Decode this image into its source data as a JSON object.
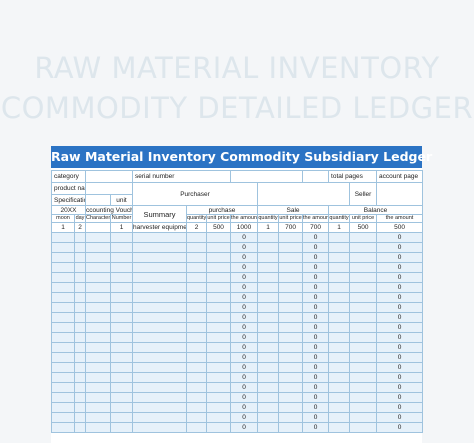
{
  "hero": {
    "line1": "RAW MATERIAL INVENTORY",
    "line2": "COMMODITY DETAILED LEDGER"
  },
  "sheet": {
    "title": "Raw Material Inventory Commodity Subsidiary Ledger",
    "labels": {
      "category": "category",
      "serial_number": "serial number",
      "total_pages": "total pages",
      "account_page": "account page",
      "product_name": "product name",
      "purchaser": "Purchaser",
      "seller": "Seller",
      "specification": "Specification",
      "unit": "unit",
      "year": "20XX",
      "accounting_voucher": "ccounting Vouche",
      "summary": "Summary",
      "purchase": "purchase",
      "sale": "Sale",
      "balance": "Balance",
      "moon": "moon",
      "day": "day",
      "character": "Character",
      "number": "Number",
      "quantity": "quantity",
      "unit_price": "unit price",
      "the_amount": "the amount"
    },
    "first_row": {
      "moon": "1",
      "day": "2",
      "character": "",
      "number": "1",
      "summary": "harvester equipment",
      "p_qty": "2",
      "p_price": "500",
      "p_amount": "1000",
      "s_qty": "1",
      "s_price": "700",
      "s_amount": "700",
      "b_qty": "1",
      "b_price": "500",
      "b_amount": "500"
    },
    "blank_row_amount": "0"
  },
  "colors": {
    "banner": "#2b73c4",
    "grid": "#9fc3de",
    "row_tint": "#e6f1fa",
    "hero_text": "#dde6ec"
  }
}
